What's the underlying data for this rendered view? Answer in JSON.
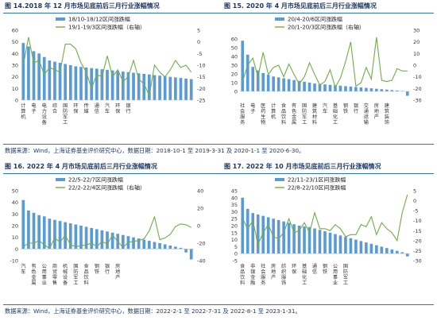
{
  "panels": [
    {
      "title": "图 14.2018 年 12 月市场见底前后三月行业涨幅情况"
    },
    {
      "title": "图 15.  2020 年 4 月市场见底前后三月行业涨幅情况"
    },
    {
      "title": "图 16.  2022 年 4 月市场见底前后三月行业涨幅情况"
    },
    {
      "title": "图 17.  2022 年 10 月市场见底前后三月行业涨幅情况"
    }
  ],
  "sources": {
    "top": "数据来源：Wind，上海证券基金评价研究中心，数据日期：2018-10-1 至 2019-3-31 及 2020-1-1 至 2020-6-30。",
    "bottom": "数据来源：Wind，上海证券基金评价研究中心，数据日期：2022-2-1 至 2022-7-31 及 2022-8-1 至 2023-1-31。"
  },
  "colors": {
    "bar": "#5b9bd5",
    "line": "#70ad47",
    "title": "#1f3864",
    "rule": "#2e75b6"
  },
  "chart_data": [
    {
      "type": "bar",
      "legend": [
        "18/10-18/12区间涨跌幅",
        "19/1-19/3区间涨跌幅（右轴）"
      ],
      "ylim": [
        0,
        60
      ],
      "yticks": [
        0,
        10,
        20,
        30,
        40,
        50,
        60
      ],
      "y2lim": [
        -25,
        5
      ],
      "y2ticks": [
        -25,
        -20,
        -15,
        -10,
        -5,
        0,
        5
      ],
      "tick_labels": [
        "计算机",
        "电子",
        "电力设备",
        "综合",
        "国防军工",
        "环保",
        "传媒",
        "通信",
        "汽车",
        "环保",
        "银行"
      ],
      "label_every": 2,
      "series": [
        {
          "values": [
            49,
            46,
            42,
            40,
            37,
            34,
            33,
            32,
            31,
            30,
            29,
            28.5,
            28,
            27.5,
            27,
            26.5,
            26,
            25.5,
            25,
            24.5,
            24,
            23.5,
            23,
            22.5,
            22,
            21.5,
            21,
            20.5,
            20,
            19.5,
            19,
            18.5,
            18
          ]
        },
        {
          "values": [
            -10,
            2,
            -9,
            -8,
            -14,
            -11,
            -12,
            -13,
            -1,
            -1,
            -3,
            -9,
            -13,
            -20,
            -14,
            -15,
            -6,
            -15,
            -12,
            -17,
            -15,
            -8,
            -16,
            -18,
            -23,
            -10,
            -13,
            -15,
            -12,
            -8,
            -11,
            -10,
            -13
          ]
        }
      ]
    },
    {
      "type": "bar",
      "legend": [
        "20/4-20/6区间涨跌幅",
        "20/1-20/3区间涨跌幅（右轴）"
      ],
      "ylim": [
        -10,
        70
      ],
      "yticks": [
        0,
        10,
        20,
        30,
        40,
        50,
        60
      ],
      "y2lim": [
        -30,
        30
      ],
      "y2ticks": [
        -30,
        -20,
        -10,
        0,
        10,
        20,
        30
      ],
      "tick_labels": [
        "社会服务",
        "电子",
        "医药生物",
        "计算机",
        "食品饮料",
        "有色金属",
        "国防军工",
        "建筑材料",
        "汽车",
        "基础化工",
        "钢铁",
        "银行",
        "交通运输",
        "房地产",
        "建筑装饰"
      ],
      "label_every": 2,
      "series": [
        {
          "values": [
            58,
            42,
            28,
            24,
            21,
            19,
            17,
            16,
            15,
            14,
            13,
            12,
            11,
            10,
            9,
            8.5,
            8,
            7.5,
            7,
            6.5,
            6,
            5.5,
            5,
            4.5,
            4,
            3.5,
            3,
            2.5,
            2,
            1.5,
            1,
            0.5,
            -5
          ]
        },
        {
          "values": [
            -14,
            0,
            6,
            -10,
            11,
            -8,
            -2,
            0,
            -10,
            1,
            -8,
            -16,
            -10,
            2,
            -8,
            -17,
            -14,
            -4,
            -19,
            -11,
            3,
            20,
            -18,
            -15,
            -2,
            -12,
            24,
            -13,
            -14,
            -13,
            -3,
            -5,
            -5
          ]
        }
      ]
    },
    {
      "type": "bar",
      "legend": [
        "22/5-22/7区间涨跌幅",
        "22/2-22/4区间涨跌幅（右轴）"
      ],
      "ylim": [
        -10,
        50
      ],
      "yticks": [
        -10,
        0,
        10,
        20,
        30,
        40,
        50
      ],
      "y2lim": [
        -40,
        40
      ],
      "y2ticks": [
        -40,
        -20,
        0,
        20,
        40
      ],
      "tick_labels": [
        "汽车",
        "有色金属",
        "公用事业",
        "商贸零售",
        "机械设备",
        "国防军工",
        "食品饮料",
        "钢铁",
        "银行",
        "房地产"
      ],
      "label_every": 2,
      "series": [
        {
          "values": [
            42,
            33,
            31,
            29,
            28,
            26,
            25,
            24,
            23,
            22,
            21,
            20,
            19,
            18,
            17,
            16,
            15,
            14,
            13,
            12,
            11,
            10,
            9,
            8,
            7,
            6,
            5,
            4,
            3,
            2,
            1,
            -3,
            -9
          ]
        },
        {
          "values": [
            -24,
            -20,
            -20,
            -17,
            -22,
            -26,
            -14,
            -19,
            -11,
            -22,
            -24,
            -23,
            -22,
            -20,
            -24,
            -18,
            -21,
            -11,
            -18,
            -25,
            -19,
            -18,
            -17,
            -15,
            -6,
            10,
            -16,
            -14,
            -10,
            -1,
            2,
            1,
            -2
          ]
        }
      ]
    },
    {
      "type": "bar",
      "legend": [
        "22/11-23/1区间涨跌幅",
        "22/8-22/10区间涨跌幅"
      ],
      "ylim": [
        -5,
        45
      ],
      "yticks": [
        -5,
        0,
        5,
        10,
        15,
        20,
        25,
        30,
        35,
        40,
        45
      ],
      "y2lim": [
        -30,
        5
      ],
      "y2ticks": [
        -30,
        -25,
        -20,
        -15,
        -10,
        -5,
        0,
        5
      ],
      "tick_labels": [
        "食品饮料",
        "非银金融",
        "社会服务",
        "房地产",
        "纺织服饰",
        "环保",
        "基础化工",
        "通信",
        "钢铁",
        "公用事业",
        "国防军工"
      ],
      "label_every": 2,
      "series": [
        {
          "values": [
            40,
            32,
            29,
            28,
            27,
            26,
            25,
            24,
            23,
            22,
            21,
            20,
            19.5,
            19,
            18,
            17,
            16,
            15,
            14,
            13,
            12,
            11,
            10,
            9,
            8,
            7,
            6,
            5,
            4,
            3,
            2,
            1,
            -2
          ]
        },
        {
          "values": [
            -9,
            -14,
            -10,
            -22,
            -16,
            -12,
            -18,
            -19,
            -16,
            -9,
            -16,
            -15,
            -11,
            -16,
            -6,
            -14,
            -14,
            -15,
            -12,
            -14,
            -18,
            -17,
            -17,
            -12,
            -13,
            -8,
            -17,
            -11,
            -14,
            -16,
            -20,
            -6,
            3
          ]
        }
      ]
    }
  ]
}
